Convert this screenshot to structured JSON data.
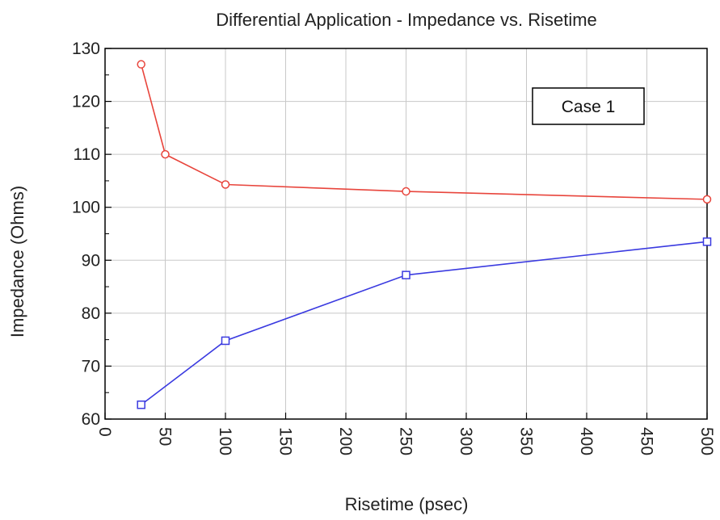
{
  "chart_data": {
    "type": "line",
    "title": "Differential Application - Impedance vs. Risetime",
    "xlabel": "Risetime (psec)",
    "ylabel": "Impedance (Ohms)",
    "xlim": [
      0,
      500
    ],
    "ylim": [
      60,
      130
    ],
    "x_ticks": [
      "0",
      "50",
      "100",
      "150",
      "200",
      "250",
      "300",
      "350",
      "400",
      "450",
      "500"
    ],
    "y_ticks": [
      "60",
      "70",
      "80",
      "90",
      "100",
      "110",
      "120",
      "130"
    ],
    "grid": true,
    "annotation": "Case 1",
    "series": [
      {
        "color": "#e8453c",
        "marker": "circle",
        "x": [
          30,
          50,
          100,
          250,
          500
        ],
        "y": [
          127,
          110,
          104.3,
          103,
          101.5
        ]
      },
      {
        "color": "#3a3ae0",
        "marker": "square",
        "x": [
          30,
          100,
          250,
          500
        ],
        "y": [
          62.7,
          74.8,
          87.2,
          93.5
        ]
      }
    ]
  }
}
